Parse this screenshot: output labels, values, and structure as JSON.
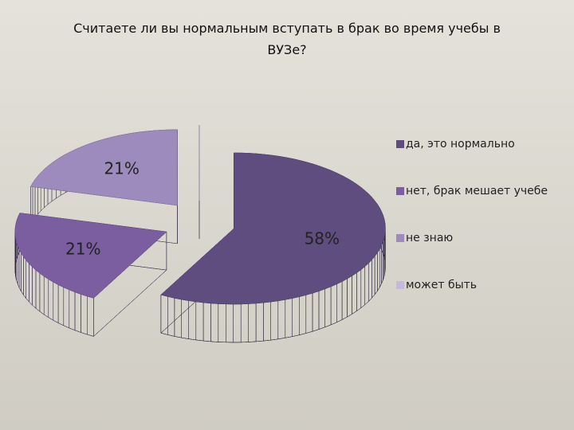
{
  "chart_data": {
    "type": "pie3d",
    "title": "Считаете ли вы нормальным вступать в брак во время учебы в ВУЗе?",
    "categories": [
      "да, это нормально",
      "нет, брак мешает учебе",
      "не знаю",
      "может быть"
    ],
    "values": [
      58,
      21,
      21,
      0
    ],
    "value_labels": [
      "58%",
      "21%",
      "21%",
      null
    ],
    "colors": [
      "#5f4d80",
      "#7b5ea0",
      "#9d8bbd",
      "#c5b9da"
    ],
    "legend": "right"
  }
}
